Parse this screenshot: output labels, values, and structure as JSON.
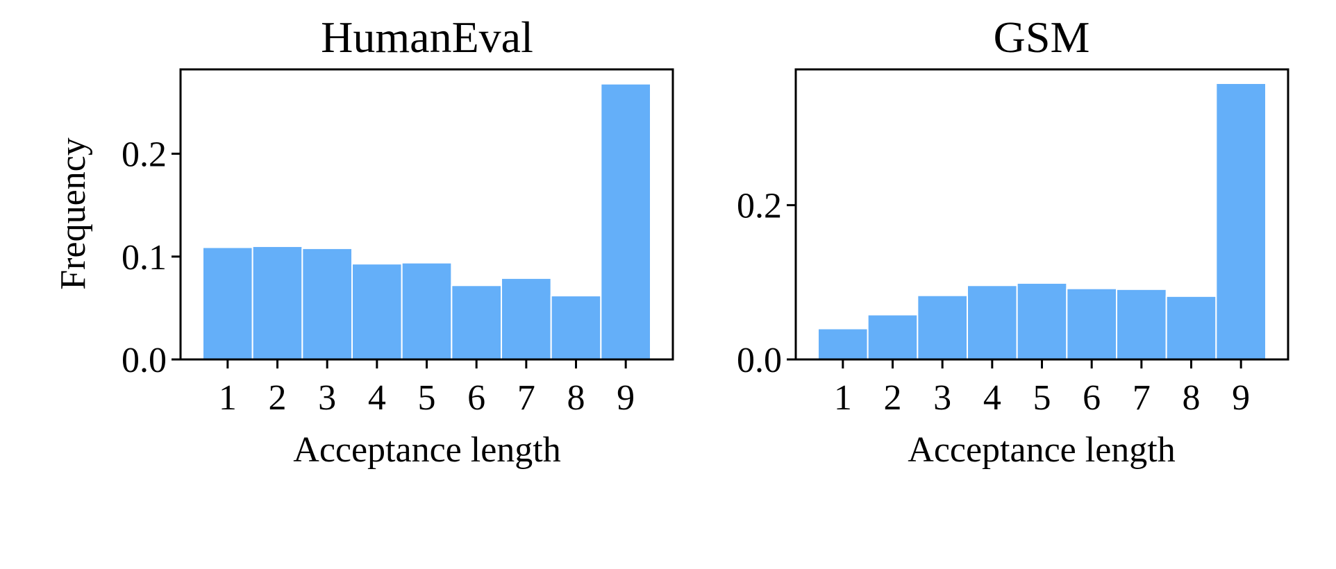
{
  "chart_data": [
    {
      "type": "bar",
      "title": "HumanEval",
      "xlabel": "Acceptance length",
      "ylabel": "Frequency",
      "categories": [
        "1",
        "2",
        "3",
        "4",
        "5",
        "6",
        "7",
        "8",
        "9"
      ],
      "values": [
        0.109,
        0.11,
        0.108,
        0.093,
        0.094,
        0.072,
        0.079,
        0.062,
        0.268
      ],
      "ylim": [
        0,
        0.282
      ],
      "yticks": [
        0.0,
        0.1,
        0.2
      ],
      "ytick_labels": [
        "0.0",
        "0.1",
        "0.2"
      ],
      "bar_color": "#64aff9",
      "grid": false
    },
    {
      "type": "bar",
      "title": "GSM",
      "xlabel": "Acceptance length",
      "ylabel": "",
      "categories": [
        "1",
        "2",
        "3",
        "4",
        "5",
        "6",
        "7",
        "8",
        "9"
      ],
      "values": [
        0.04,
        0.058,
        0.083,
        0.096,
        0.099,
        0.092,
        0.091,
        0.082,
        0.358
      ],
      "ylim": [
        0,
        0.376
      ],
      "yticks": [
        0.0,
        0.2
      ],
      "ytick_labels": [
        "0.0",
        "0.2"
      ],
      "bar_color": "#64aff9",
      "grid": false
    }
  ]
}
